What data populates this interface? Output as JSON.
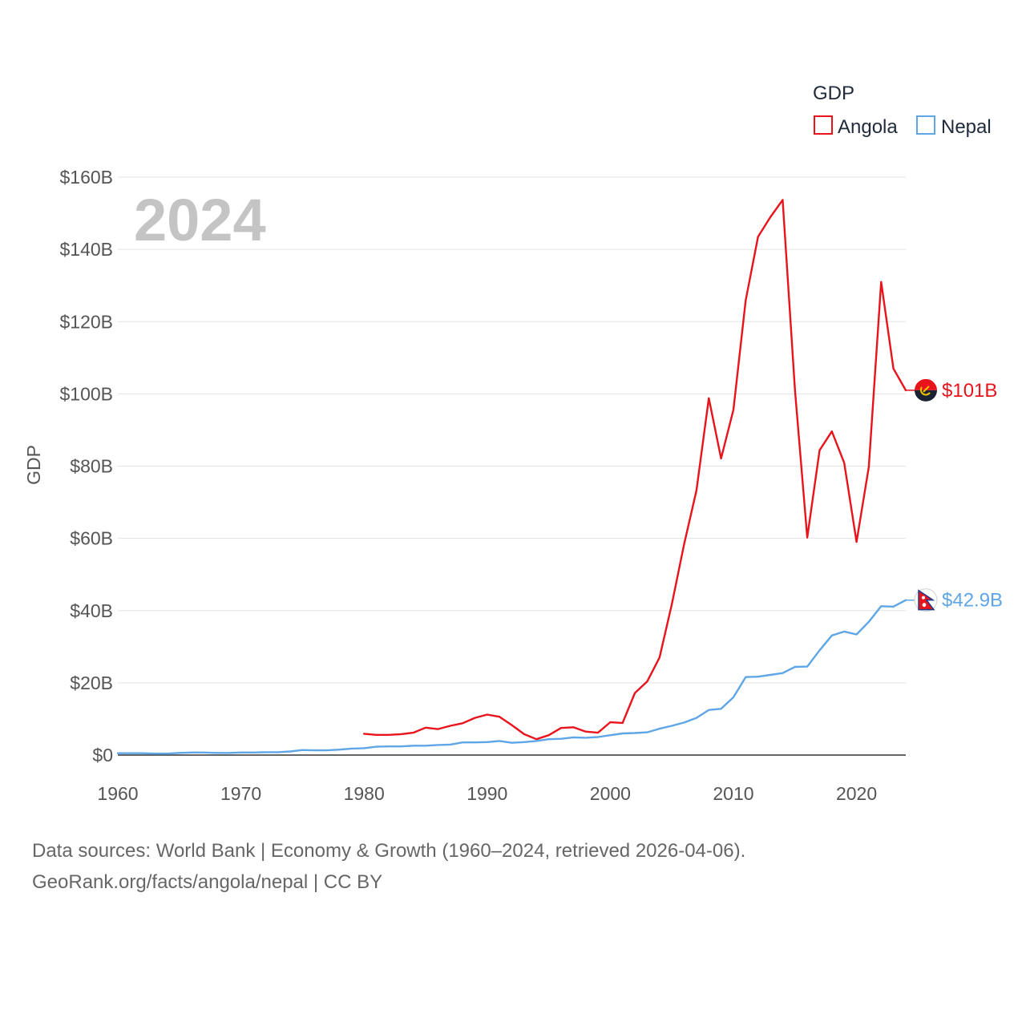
{
  "chart_data": {
    "type": "line",
    "title": "GDP",
    "ylabel": "GDP",
    "xlabel": "",
    "year_label": "2024",
    "xlim": [
      1960,
      2024
    ],
    "ylim": [
      0,
      160
    ],
    "x_ticks": [
      1960,
      1970,
      1980,
      1990,
      2000,
      2010,
      2020
    ],
    "x_tick_labels": [
      "1960",
      "1970",
      "1980",
      "1990",
      "2000",
      "2010",
      "2020"
    ],
    "y_ticks": [
      0,
      20,
      40,
      60,
      80,
      100,
      120,
      140,
      160
    ],
    "y_tick_labels": [
      "$0",
      "$20B",
      "$40B",
      "$60B",
      "$80B",
      "$100B",
      "$120B",
      "$140B",
      "$160B"
    ],
    "grid": true,
    "legend_position": "top-right",
    "series": [
      {
        "name": "Angola",
        "color": "#e8131b",
        "end_label": "$101B",
        "flag_icon": "angola-flag-icon",
        "x": [
          1980,
          1981,
          1982,
          1983,
          1984,
          1985,
          1986,
          1987,
          1988,
          1989,
          1990,
          1991,
          1992,
          1993,
          1994,
          1995,
          1996,
          1997,
          1998,
          1999,
          2000,
          2001,
          2002,
          2003,
          2004,
          2005,
          2006,
          2007,
          2008,
          2009,
          2010,
          2011,
          2012,
          2013,
          2014,
          2015,
          2016,
          2017,
          2018,
          2019,
          2020,
          2021,
          2022,
          2023,
          2024
        ],
        "values": [
          5.9,
          5.6,
          5.6,
          5.8,
          6.2,
          7.6,
          7.2,
          8.1,
          8.8,
          10.3,
          11.2,
          10.6,
          8.3,
          5.8,
          4.4,
          5.5,
          7.5,
          7.7,
          6.5,
          6.2,
          9.1,
          8.9,
          17.2,
          20.4,
          27.0,
          41.8,
          58.4,
          73.3,
          98.8,
          82.1,
          95.6,
          125.9,
          143.5,
          148.9,
          153.7,
          101.0,
          60.2,
          84.4,
          89.6,
          80.9,
          59.0,
          79.8,
          131.0,
          107.0,
          101.0
        ]
      },
      {
        "name": "Nepal",
        "color": "#5ea6e6",
        "end_label": "$42.9B",
        "flag_icon": "nepal-flag-icon",
        "x": [
          1960,
          1961,
          1962,
          1963,
          1964,
          1965,
          1966,
          1967,
          1968,
          1969,
          1970,
          1971,
          1972,
          1973,
          1974,
          1975,
          1976,
          1977,
          1978,
          1979,
          1980,
          1981,
          1982,
          1983,
          1984,
          1985,
          1986,
          1987,
          1988,
          1989,
          1990,
          1991,
          1992,
          1993,
          1994,
          1995,
          1996,
          1997,
          1998,
          1999,
          2000,
          2001,
          2002,
          2003,
          2004,
          2005,
          2006,
          2007,
          2008,
          2009,
          2010,
          2011,
          2012,
          2013,
          2014,
          2015,
          2016,
          2017,
          2018,
          2019,
          2020,
          2021,
          2022,
          2023,
          2024
        ],
        "values": [
          0.5,
          0.5,
          0.5,
          0.4,
          0.4,
          0.6,
          0.7,
          0.7,
          0.6,
          0.6,
          0.7,
          0.7,
          0.8,
          0.8,
          1.0,
          1.4,
          1.3,
          1.3,
          1.5,
          1.8,
          1.9,
          2.3,
          2.4,
          2.4,
          2.6,
          2.6,
          2.8,
          2.9,
          3.5,
          3.5,
          3.6,
          3.9,
          3.4,
          3.6,
          3.9,
          4.4,
          4.5,
          4.9,
          4.8,
          5.0,
          5.5,
          6.0,
          6.1,
          6.3,
          7.3,
          8.1,
          9.0,
          10.3,
          12.5,
          12.8,
          16.0,
          21.6,
          21.7,
          22.2,
          22.7,
          24.4,
          24.5,
          29.0,
          33.1,
          34.2,
          33.4,
          36.9,
          41.2,
          41.1,
          42.9
        ]
      }
    ]
  },
  "footer": {
    "source_line": "Data sources: World Bank | Economy & Growth (1960–2024, retrieved 2026-04-06).",
    "credit_line": "GeoRank.org/facts/angola/nepal | CC BY"
  }
}
